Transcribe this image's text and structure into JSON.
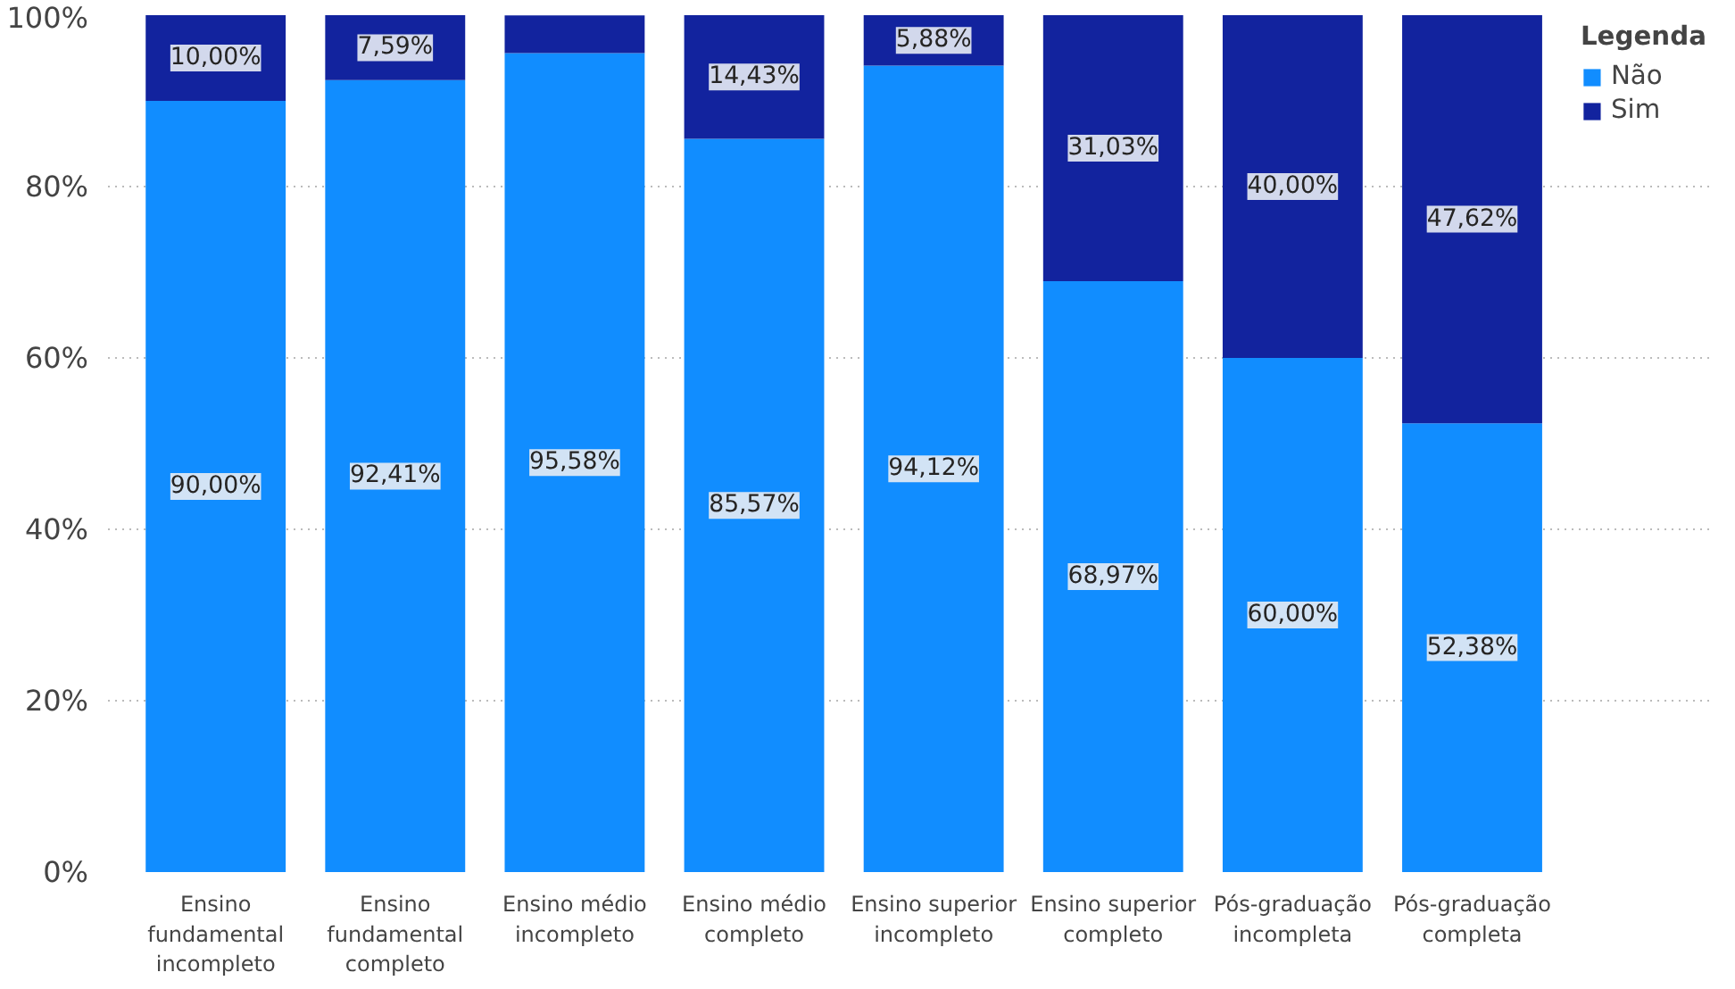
{
  "chart_data": {
    "type": "bar",
    "stacked": true,
    "categories": [
      "Ensino\nfundamental\nincompleto",
      "Ensino\nfundamental\ncompleto",
      "Ensino médio\nincompleto",
      "Ensino médio\ncompleto",
      "Ensino superior\nincompleto",
      "Ensino superior\ncompleto",
      "Pós-graduação\nincompleta",
      "Pós-graduação\ncompleta"
    ],
    "series": [
      {
        "name": "Não",
        "color": "#118dff",
        "values": [
          90.0,
          92.41,
          95.58,
          85.57,
          94.12,
          68.97,
          60.0,
          52.38
        ],
        "value_labels": [
          "90,00%",
          "92,41%",
          "95,58%",
          "85,57%",
          "94,12%",
          "68,97%",
          "60,00%",
          "52,38%"
        ]
      },
      {
        "name": "Sim",
        "color": "#12239e",
        "values": [
          10.0,
          7.59,
          4.4,
          14.43,
          5.88,
          31.03,
          40.0,
          47.62
        ],
        "value_labels": [
          "10,00%",
          "7,59%",
          null,
          "14,43%",
          "5,88%",
          "31,03%",
          "40,00%",
          "47,62%"
        ]
      }
    ],
    "ylim": [
      0,
      100
    ],
    "yticks": [
      {
        "value": 0,
        "label": "0%"
      },
      {
        "value": 20,
        "label": "20%"
      },
      {
        "value": 40,
        "label": "40%"
      },
      {
        "value": 60,
        "label": "60%"
      },
      {
        "value": 80,
        "label": "80%"
      },
      {
        "value": 100,
        "label": "100%"
      }
    ],
    "grid": "y",
    "legend": "top right",
    "legend_title": "Legenda"
  }
}
